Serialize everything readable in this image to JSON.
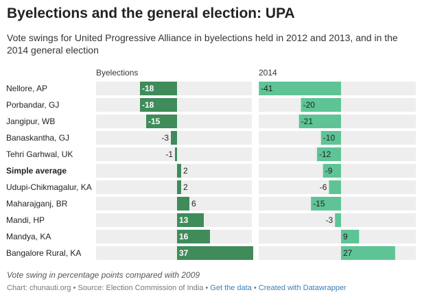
{
  "title": "Byelections and the general election: UPA",
  "subtitle": "Vote swings for United Progressive Alliance in byelections held in 2012 and 2013, and in the 2014 general election",
  "notes": "Vote swing in percentage points compared with 2009",
  "source": {
    "text": "Chart: chunauti.org • Source: Election Commission of India • ",
    "link_data": "Get the data",
    "separator": " • ",
    "link_datawrapper": "Created with Datawrapper"
  },
  "colors": {
    "byelection_bar": "#3f8c5a",
    "ge2014_bar": "#5ec496",
    "track": "#eeeeee"
  },
  "chart_data": {
    "type": "bar",
    "orientation": "horizontal",
    "layout": "split-bars",
    "categories": [
      "Nellore, AP",
      "Porbandar, GJ",
      "Jangipur, WB",
      "Banaskantha, GJ",
      "Tehri Garhwal, UK",
      "Simple average",
      "Udupi-Chikmagalur, KA",
      "Maharajganj, BR",
      "Mandi, HP",
      "Mandya, KA",
      "Bangalore Rural, KA"
    ],
    "bold_categories": [
      "Simple average"
    ],
    "series": [
      {
        "name": "Byelections",
        "values": [
          -18,
          -18,
          -15,
          -3,
          -1,
          2,
          2,
          6,
          13,
          16,
          37
        ]
      },
      {
        "name": "2014",
        "values": [
          -41,
          -20,
          -21,
          -10,
          -12,
          -9,
          -6,
          -15,
          -3,
          9,
          27
        ]
      }
    ]
  }
}
